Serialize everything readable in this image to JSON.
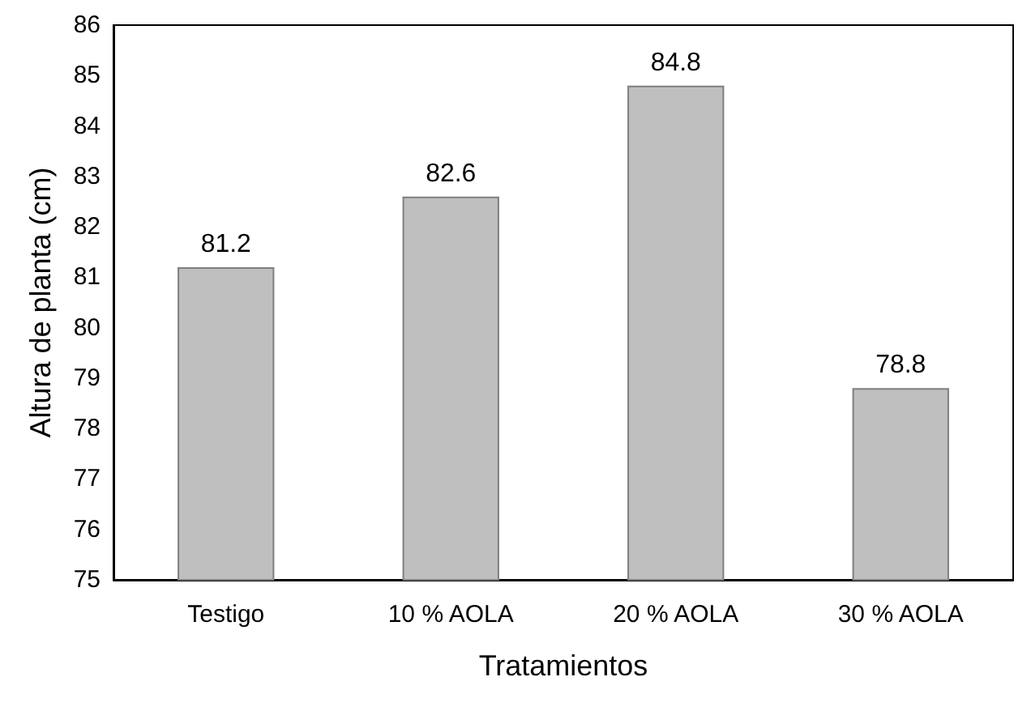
{
  "chart_data": {
    "type": "bar",
    "xlabel": "Tratamientos",
    "ylabel": "Altura de planta (cm)",
    "categories": [
      "Testigo",
      "10 % AOLA",
      "20 % AOLA",
      "30 % AOLA"
    ],
    "values": [
      81.2,
      82.6,
      84.8,
      78.8
    ],
    "color": "#bfbfbf",
    "ylim": [
      75,
      86
    ],
    "yticks": [
      75,
      76,
      77,
      78,
      79,
      80,
      81,
      82,
      83,
      84,
      85,
      86
    ],
    "data_labels": true
  }
}
